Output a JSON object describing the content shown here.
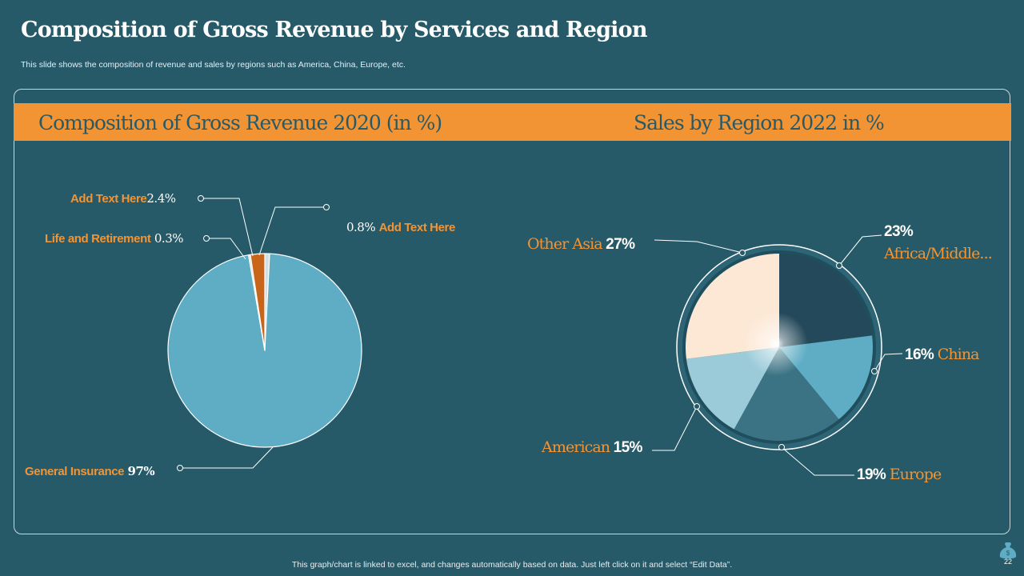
{
  "title": "Composition of Gross Revenue by Services and Region",
  "subtitle": "This slide shows the composition of revenue and sales by regions such as America, China, Europe, etc.",
  "footer": "This graph/chart is linked to excel, and changes automatically based on data. Just left click on it and select “Edit Data”.",
  "page_number": "22",
  "icon": "money-bag-icon",
  "colors": {
    "background": "#265a69",
    "accent": "#f39434"
  },
  "chart_data": [
    {
      "type": "pie",
      "title": "Composition of Gross Revenue 2020 (in %)",
      "categories": [
        "General Insurance",
        "Life and Retirement",
        "Add Text Here",
        "Add Text Here"
      ],
      "values": [
        97,
        0.3,
        2.4,
        0.8
      ],
      "value_labels": [
        "97%",
        "0.3%",
        "2.4%",
        "0.8%"
      ],
      "colors": [
        "#5eadc4",
        "#d9d9d9",
        "#c8651b",
        "#cfe0e6"
      ]
    },
    {
      "type": "pie",
      "title": "Sales by Region 2022 in %",
      "categories": [
        "Africa/Middle...",
        "China",
        "Europe",
        "American",
        "Other Asia"
      ],
      "values": [
        23,
        16,
        19,
        15,
        27
      ],
      "value_labels": [
        "23%",
        "16%",
        "19%",
        "15%",
        "27%"
      ],
      "colors": [
        "#24495a",
        "#5eadc4",
        "#3b7384",
        "#9bcbd9",
        "#fde8d6"
      ]
    }
  ]
}
